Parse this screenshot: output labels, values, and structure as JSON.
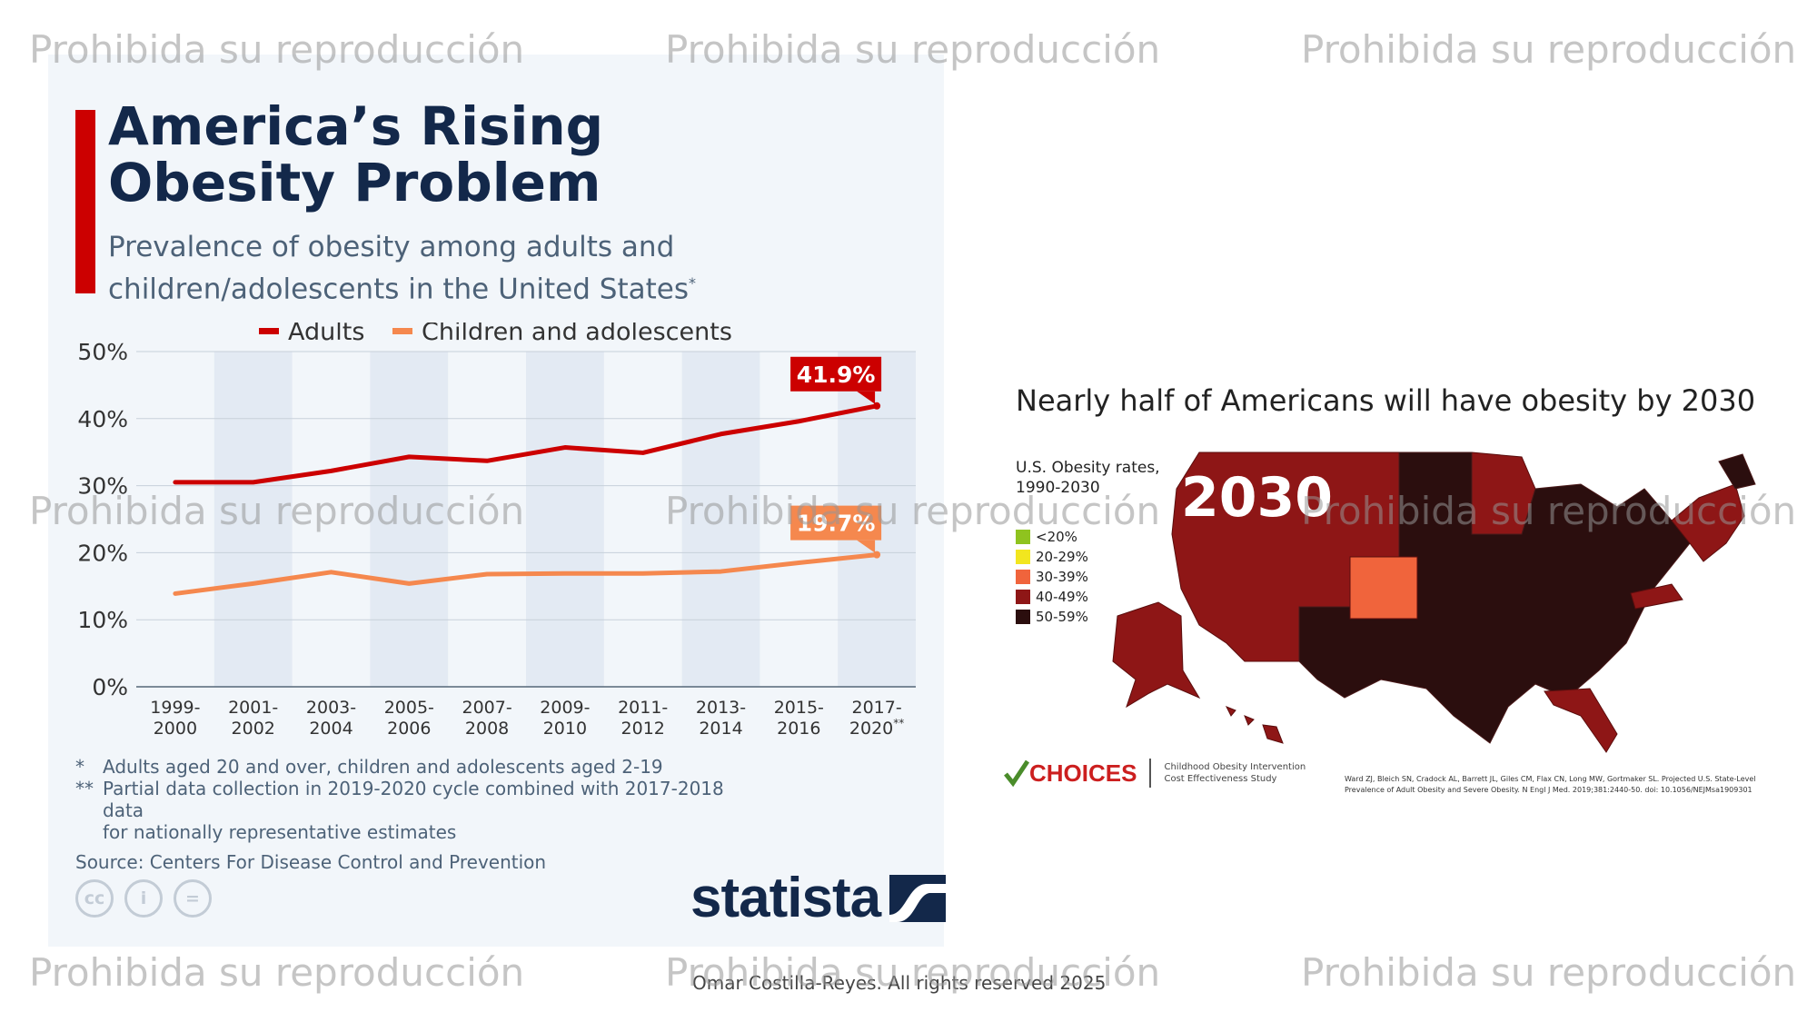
{
  "left": {
    "title_line1": "America’s Rising",
    "title_line2": "Obesity Problem",
    "subtitle_line1": "Prevalence of obesity among adults and",
    "subtitle_line2": "children/adolescents in the United States",
    "subtitle_mark": "*",
    "footnotes": [
      {
        "mark": "*",
        "text": "Adults aged 20 and over, children and adolescents aged 2-19"
      },
      {
        "mark": "**",
        "text": "Partial data collection in 2019-2020 cycle combined with 2017-2018 data"
      }
    ],
    "footnote2_cont": "for nationally representative estimates",
    "source": "Source: Centers For Disease Control and Prevention",
    "cc_icons": [
      {
        "icon": "cc-icon",
        "glyph": "cc"
      },
      {
        "icon": "person-icon",
        "glyph": "i"
      },
      {
        "icon": "equals-icon",
        "glyph": "="
      }
    ],
    "logo_text": "statista"
  },
  "chart_data": {
    "type": "line",
    "categories": [
      [
        "1999-",
        "2000"
      ],
      [
        "2001-",
        "2002"
      ],
      [
        "2003-",
        "2004"
      ],
      [
        "2005-",
        "2006"
      ],
      [
        "2007-",
        "2008"
      ],
      [
        "2009-",
        "2010"
      ],
      [
        "2011-",
        "2012"
      ],
      [
        "2013-",
        "2014"
      ],
      [
        "2015-",
        "2016"
      ],
      [
        "2017-",
        "2020"
      ]
    ],
    "last_category_mark": "**",
    "series": [
      {
        "name": "Adults",
        "color": "#cc0000",
        "values": [
          30.5,
          30.5,
          32.2,
          34.3,
          33.7,
          35.7,
          34.9,
          37.7,
          39.6,
          41.9
        ],
        "end_label": "41.9%"
      },
      {
        "name": "Children and adolescents",
        "color": "#f5884e",
        "values": [
          13.9,
          15.4,
          17.1,
          15.4,
          16.8,
          16.9,
          16.9,
          17.2,
          18.5,
          19.7
        ],
        "end_label": "19.7%"
      }
    ],
    "y_ticks": [
      "0%",
      "10%",
      "20%",
      "30%",
      "40%",
      "50%"
    ],
    "ylim": [
      0,
      50
    ],
    "legend_position": "top",
    "grid": true
  },
  "right": {
    "title": "Nearly half of Americans will have obesity by 2030",
    "legend_title_line1": "U.S. Obesity rates,",
    "legend_title_line2": "1990-2030",
    "legend": [
      {
        "label": "<20%",
        "color": "#8fc31f"
      },
      {
        "label": "20-29%",
        "color": "#f2e61f"
      },
      {
        "label": "30-39%",
        "color": "#f0643c"
      },
      {
        "label": "40-49%",
        "color": "#8e1616"
      },
      {
        "label": "50-59%",
        "color": "#2b0e0e"
      }
    ],
    "map_year": "2030",
    "logo_text": "CHOICES",
    "logo_sub_line1": "Childhood Obesity Intervention",
    "logo_sub_line2": "Cost Effectiveness Study",
    "citation": "Ward ZJ, Bleich SN, Cradock AL, Barrett JL, Giles CM, Flax CN, Long MW, Gortmaker SL. Projected U.S. State-Level Prevalence of Adult Obesity and Severe Obesity. N Engl J Med. 2019;381:2440-50. doi: 10.1056/NEJMsa1909301"
  },
  "copyright": "Omar Costilla-Reyes. All rights reserved 2025",
  "watermark": "Prohibida su reproducción"
}
